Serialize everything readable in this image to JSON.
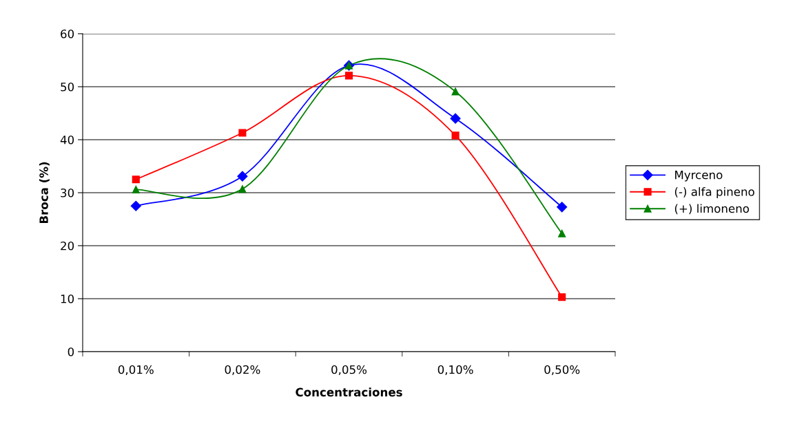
{
  "chart_data": {
    "type": "line",
    "xlabel": "Concentraciones",
    "ylabel": "Broca (%)",
    "categories": [
      "0,01%",
      "0,02%",
      "0,05%",
      "0,10%",
      "0,50%"
    ],
    "series": [
      {
        "name": "Myrceno",
        "color": "#0000ff",
        "marker": "diamond",
        "values": [
          27.5,
          33.1,
          54.0,
          44.0,
          27.3
        ]
      },
      {
        "name": "(-) alfa pineno",
        "color": "#ff0000",
        "marker": "square",
        "values": [
          32.5,
          41.3,
          52.1,
          40.8,
          10.3
        ]
      },
      {
        "name": "(+) limoneno",
        "color": "#008000",
        "marker": "triangle",
        "values": [
          30.6,
          30.7,
          54.0,
          49.1,
          22.3
        ]
      }
    ],
    "ylim": [
      0,
      60
    ],
    "yticks": [
      0,
      10,
      20,
      30,
      40,
      50,
      60
    ],
    "grid": "y",
    "legend": "right",
    "line_style": "solid"
  }
}
